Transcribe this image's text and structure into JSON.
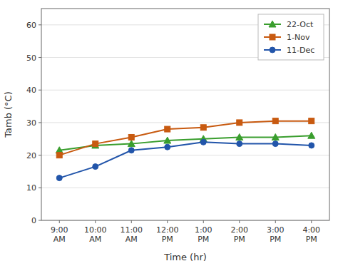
{
  "chart_data": {
    "type": "line",
    "categories": [
      "9:00\nAM",
      "10:00\nAM",
      "11:00\nAM",
      "12:00\nPM",
      "1:00\nPM",
      "2:00\nPM",
      "3:00\nPM",
      "4:00\nPM"
    ],
    "series": [
      {
        "name": "22-Oct",
        "color": "#3a9e2e",
        "marker": "triangle",
        "values": [
          21.5,
          23.0,
          23.5,
          24.5,
          25.0,
          25.5,
          25.5,
          26.0
        ]
      },
      {
        "name": "1-Nov",
        "color": "#c85a10",
        "marker": "square",
        "values": [
          20.0,
          23.5,
          25.5,
          28.0,
          28.5,
          30.0,
          30.5,
          30.5
        ]
      },
      {
        "name": "11-Dec",
        "color": "#2255aa",
        "marker": "circle",
        "values": [
          13.0,
          16.5,
          21.5,
          22.5,
          24.0,
          23.5,
          23.5,
          23.0
        ]
      }
    ],
    "xlabel": "Time (hr)",
    "ylabel": "Tamb (°C)",
    "ylim": [
      0,
      65
    ],
    "yticks": [
      0,
      10,
      20,
      30,
      40,
      50,
      60
    ],
    "grid": true,
    "legend": "upper right"
  }
}
